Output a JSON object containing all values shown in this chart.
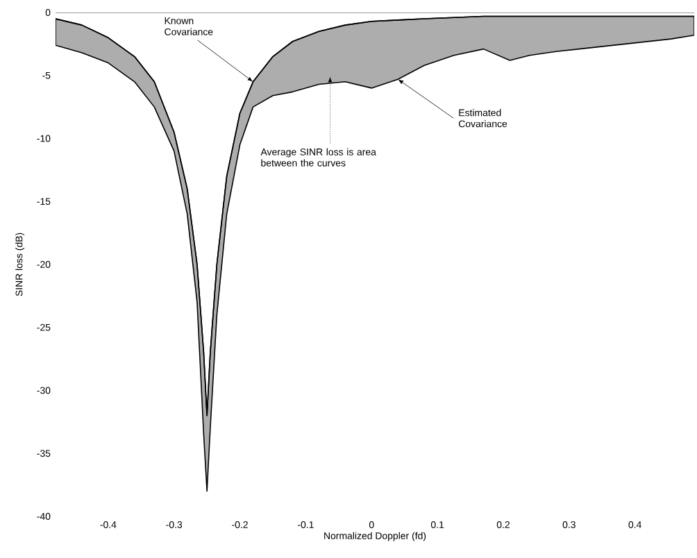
{
  "chart_data": {
    "type": "line",
    "xlabel": "Normalized Doppler (fd)",
    "ylabel": "SINR loss (dB)",
    "xlim": [
      -0.48,
      0.49
    ],
    "ylim": [
      -40,
      0
    ],
    "xticks": [
      -0.4,
      -0.3,
      -0.2,
      -0.1,
      0,
      0.1,
      0.2,
      0.3,
      0.4
    ],
    "yticks": [
      -40,
      -35,
      -30,
      -25,
      -20,
      -15,
      -10,
      -5,
      0
    ],
    "grid": false,
    "marker": "none",
    "line_style": "solid",
    "x": [
      -0.48,
      -0.44,
      -0.4,
      -0.36,
      -0.33,
      -0.3,
      -0.28,
      -0.265,
      -0.255,
      -0.25,
      -0.245,
      -0.235,
      -0.22,
      -0.2,
      -0.18,
      -0.15,
      -0.12,
      -0.08,
      -0.04,
      0,
      0.04,
      0.08,
      0.125,
      0.17,
      0.21,
      0.24,
      0.28,
      0.315,
      0.385,
      0.455,
      0.49
    ],
    "series": [
      {
        "color": "#000000",
        "values": [
          -0.5,
          -1.0,
          -2.0,
          -3.5,
          -5.5,
          -9.5,
          -14,
          -20,
          -27,
          -32,
          -27,
          -20,
          -13,
          -8,
          -5.5,
          -3.5,
          -2.3,
          -1.5,
          -1.0,
          -0.7,
          -0.6,
          -0.5,
          -0.4,
          -0.3,
          -0.3,
          -0.3,
          -0.3,
          -0.3,
          -0.3,
          -0.3,
          -0.3
        ],
        "upper": [
          -0.5,
          -1.0,
          -2.0,
          -3.5,
          -5.5,
          -9.5,
          -14,
          -20,
          -27,
          -32,
          -27,
          -20,
          -13,
          -8,
          -5.5,
          -3.5,
          -2.3,
          -1.5,
          -1.0,
          -0.7,
          -0.6,
          -0.5,
          -0.4,
          -0.3,
          -0.3,
          -0.3,
          -0.3,
          -0.3,
          -0.3,
          -0.3,
          -0.3
        ],
        "lower": [
          -2.6,
          -3.2,
          -4.0,
          -5.5,
          -7.5,
          -11,
          -16,
          -23,
          -33.5,
          -38,
          -33,
          -24,
          -16,
          -10.5,
          -7.5,
          -6.6,
          -6.3,
          -5.7,
          -5.5,
          -6.0,
          -5.3,
          -4.2,
          -3.4,
          -2.9,
          -3.8,
          -3.4,
          -3.1,
          -2.9,
          -2.5,
          -2.1,
          -1.8
        ]
      }
    ],
    "annotations": [
      {
        "text": "Known Covariance",
        "x": -0.18,
        "y": -5.5
      },
      {
        "text": "Average SINR loss is area between the curves",
        "x": -0.063,
        "y": -5.1
      },
      {
        "text": "Estimated Covariance",
        "x": 0.04,
        "y": -5.3
      }
    ]
  }
}
